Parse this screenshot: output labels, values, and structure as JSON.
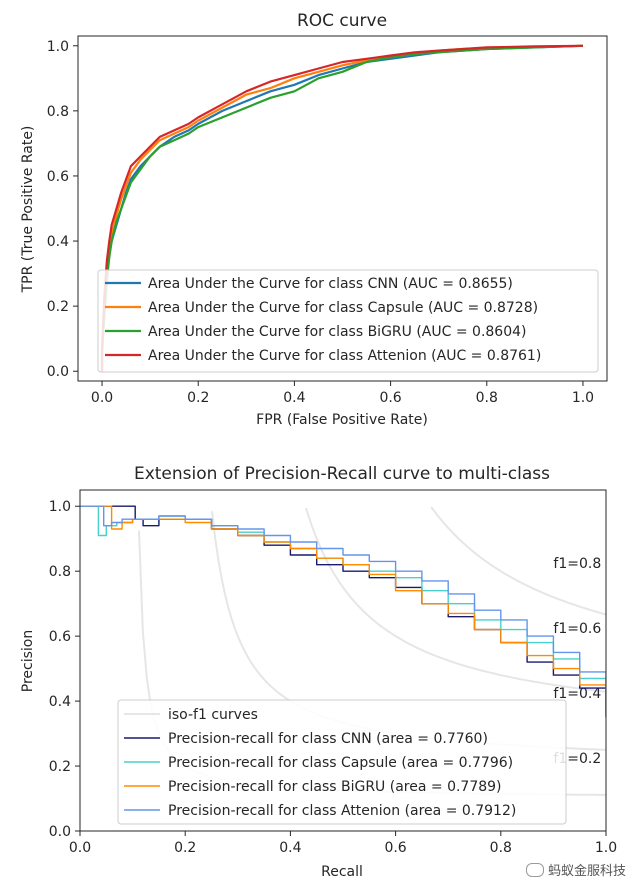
{
  "watermark": "蚂蚁金服科技",
  "chart_data": [
    {
      "type": "line",
      "title": "ROC curve",
      "xlabel": "FPR (False Positive Rate)",
      "ylabel": "TPR (True Positive Rate)",
      "xlim": [
        -0.05,
        1.05
      ],
      "ylim": [
        -0.03,
        1.03
      ],
      "xticks": [
        0.0,
        0.2,
        0.4,
        0.6,
        0.8,
        1.0
      ],
      "xtick_labels": [
        "0.0",
        "0.2",
        "0.4",
        "0.6",
        "0.8",
        "1.0"
      ],
      "yticks": [
        0.0,
        0.2,
        0.4,
        0.6,
        0.8,
        1.0
      ],
      "ytick_labels": [
        "0.0",
        "0.2",
        "0.4",
        "0.6",
        "0.8",
        "1.0"
      ],
      "grid": false,
      "legend_position": "lower-right",
      "series": [
        {
          "name": "Area Under the Curve for class CNN (AUC = 0.8655)",
          "color": "#1f77b4",
          "x": [
            0.0,
            0.0,
            0.005,
            0.01,
            0.015,
            0.02,
            0.03,
            0.04,
            0.05,
            0.06,
            0.08,
            0.1,
            0.12,
            0.15,
            0.18,
            0.2,
            0.25,
            0.3,
            0.35,
            0.4,
            0.45,
            0.5,
            0.55,
            0.6,
            0.65,
            0.7,
            0.75,
            0.8,
            0.9,
            1.0
          ],
          "y": [
            0.0,
            0.05,
            0.2,
            0.3,
            0.36,
            0.4,
            0.45,
            0.5,
            0.55,
            0.59,
            0.63,
            0.66,
            0.69,
            0.72,
            0.74,
            0.76,
            0.8,
            0.83,
            0.86,
            0.88,
            0.91,
            0.93,
            0.95,
            0.96,
            0.97,
            0.98,
            0.985,
            0.99,
            0.995,
            1.0
          ]
        },
        {
          "name": "Area Under the Curve for class Capsule (AUC = 0.8728)",
          "color": "#ff7f0e",
          "x": [
            0.0,
            0.0,
            0.005,
            0.01,
            0.015,
            0.02,
            0.03,
            0.04,
            0.05,
            0.06,
            0.08,
            0.1,
            0.12,
            0.15,
            0.18,
            0.2,
            0.25,
            0.3,
            0.35,
            0.4,
            0.45,
            0.5,
            0.55,
            0.6,
            0.65,
            0.7,
            0.75,
            0.8,
            0.9,
            1.0
          ],
          "y": [
            0.0,
            0.06,
            0.22,
            0.32,
            0.38,
            0.42,
            0.48,
            0.53,
            0.57,
            0.61,
            0.65,
            0.68,
            0.71,
            0.73,
            0.75,
            0.77,
            0.81,
            0.85,
            0.87,
            0.9,
            0.92,
            0.94,
            0.955,
            0.965,
            0.975,
            0.985,
            0.99,
            0.993,
            0.997,
            1.0
          ]
        },
        {
          "name": "Area Under the Curve for class BiGRU (AUC = 0.8604)",
          "color": "#2ca02c",
          "x": [
            0.0,
            0.0,
            0.005,
            0.01,
            0.015,
            0.02,
            0.03,
            0.04,
            0.05,
            0.06,
            0.08,
            0.1,
            0.12,
            0.15,
            0.18,
            0.2,
            0.25,
            0.3,
            0.35,
            0.4,
            0.45,
            0.5,
            0.55,
            0.6,
            0.65,
            0.7,
            0.75,
            0.8,
            0.9,
            1.0
          ],
          "y": [
            0.0,
            0.05,
            0.18,
            0.28,
            0.35,
            0.4,
            0.46,
            0.5,
            0.54,
            0.58,
            0.62,
            0.66,
            0.69,
            0.71,
            0.73,
            0.75,
            0.78,
            0.81,
            0.84,
            0.86,
            0.9,
            0.92,
            0.95,
            0.965,
            0.975,
            0.98,
            0.985,
            0.99,
            0.995,
            1.0
          ]
        },
        {
          "name": "Area Under the Curve for class Attenion (AUC = 0.8761)",
          "color": "#d62728",
          "x": [
            0.0,
            0.0,
            0.005,
            0.01,
            0.015,
            0.02,
            0.03,
            0.04,
            0.05,
            0.06,
            0.08,
            0.1,
            0.12,
            0.15,
            0.18,
            0.2,
            0.25,
            0.3,
            0.35,
            0.4,
            0.45,
            0.5,
            0.55,
            0.6,
            0.65,
            0.7,
            0.75,
            0.8,
            0.9,
            1.0
          ],
          "y": [
            0.0,
            0.07,
            0.24,
            0.34,
            0.4,
            0.45,
            0.5,
            0.55,
            0.59,
            0.63,
            0.66,
            0.69,
            0.72,
            0.74,
            0.76,
            0.78,
            0.82,
            0.86,
            0.89,
            0.91,
            0.93,
            0.95,
            0.96,
            0.97,
            0.98,
            0.985,
            0.99,
            0.995,
            0.998,
            1.0
          ]
        }
      ]
    },
    {
      "type": "line",
      "title": "Extension of Precision-Recall curve to multi-class",
      "xlabel": "Recall",
      "ylabel": "Precision",
      "xlim": [
        0.0,
        1.0
      ],
      "ylim": [
        0.0,
        1.05
      ],
      "xticks": [
        0.0,
        0.2,
        0.4,
        0.6,
        0.8,
        1.0
      ],
      "xtick_labels": [
        "0.0",
        "0.2",
        "0.4",
        "0.6",
        "0.8",
        "1.0"
      ],
      "yticks": [
        0.0,
        0.2,
        0.4,
        0.6,
        0.8,
        1.0
      ],
      "ytick_labels": [
        "0.0",
        "0.2",
        "0.4",
        "0.6",
        "0.8",
        "1.0"
      ],
      "grid": false,
      "legend_position": "lower-left",
      "iso_f1": {
        "legend_label": "iso-f1 curves",
        "color": "#e6e6e6",
        "levels": [
          0.2,
          0.4,
          0.6,
          0.8
        ],
        "labels": [
          "f1=0.2",
          "f1=0.4",
          "f1=0.6",
          "f1=0.8"
        ],
        "label_y": [
          0.2,
          0.4,
          0.6,
          0.8
        ]
      },
      "series": [
        {
          "name": "Precision-recall for class CNN (area = 0.7760)",
          "color": "#191970",
          "x": [
            0.0,
            0.1,
            0.105,
            0.12,
            0.15,
            0.2,
            0.25,
            0.3,
            0.35,
            0.4,
            0.45,
            0.5,
            0.55,
            0.6,
            0.65,
            0.7,
            0.75,
            0.8,
            0.85,
            0.9,
            0.95,
            1.0
          ],
          "y": [
            1.0,
            1.0,
            0.96,
            0.94,
            0.96,
            0.96,
            0.93,
            0.91,
            0.88,
            0.85,
            0.82,
            0.8,
            0.78,
            0.75,
            0.7,
            0.66,
            0.62,
            0.58,
            0.52,
            0.48,
            0.44,
            0.35
          ]
        },
        {
          "name": "Precision-recall for class Capsule (area = 0.7796)",
          "color": "#48d1cc",
          "x": [
            0.0,
            0.03,
            0.035,
            0.05,
            0.07,
            0.1,
            0.15,
            0.2,
            0.25,
            0.3,
            0.35,
            0.4,
            0.45,
            0.5,
            0.55,
            0.6,
            0.65,
            0.7,
            0.75,
            0.8,
            0.85,
            0.9,
            0.95,
            1.0
          ],
          "y": [
            1.0,
            1.0,
            0.91,
            0.94,
            0.95,
            0.96,
            0.97,
            0.96,
            0.94,
            0.92,
            0.89,
            0.87,
            0.84,
            0.82,
            0.8,
            0.78,
            0.74,
            0.7,
            0.65,
            0.62,
            0.58,
            0.53,
            0.47,
            0.37
          ]
        },
        {
          "name": "Precision-recall for class BiGRU (area = 0.7789)",
          "color": "#ff8c00",
          "x": [
            0.0,
            0.05,
            0.06,
            0.08,
            0.1,
            0.15,
            0.2,
            0.25,
            0.3,
            0.35,
            0.4,
            0.45,
            0.5,
            0.55,
            0.6,
            0.65,
            0.7,
            0.75,
            0.8,
            0.85,
            0.9,
            0.95,
            1.0
          ],
          "y": [
            1.0,
            1.0,
            0.93,
            0.95,
            0.96,
            0.96,
            0.95,
            0.93,
            0.91,
            0.89,
            0.87,
            0.84,
            0.82,
            0.79,
            0.74,
            0.7,
            0.67,
            0.62,
            0.58,
            0.54,
            0.5,
            0.45,
            0.36
          ]
        },
        {
          "name": "Precision-recall for class Attenion (area = 0.7912)",
          "color": "#6495ed",
          "x": [
            0.0,
            0.04,
            0.045,
            0.06,
            0.08,
            0.1,
            0.15,
            0.2,
            0.25,
            0.3,
            0.35,
            0.4,
            0.45,
            0.5,
            0.55,
            0.6,
            0.65,
            0.7,
            0.75,
            0.8,
            0.85,
            0.9,
            0.95,
            1.0
          ],
          "y": [
            1.0,
            1.0,
            0.94,
            0.95,
            0.96,
            0.96,
            0.97,
            0.96,
            0.94,
            0.93,
            0.91,
            0.89,
            0.87,
            0.85,
            0.83,
            0.8,
            0.77,
            0.73,
            0.68,
            0.65,
            0.6,
            0.55,
            0.49,
            0.39
          ]
        }
      ]
    }
  ]
}
